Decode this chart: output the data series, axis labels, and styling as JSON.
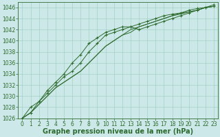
{
  "x": [
    0,
    1,
    2,
    3,
    4,
    5,
    6,
    7,
    8,
    9,
    10,
    11,
    12,
    13,
    14,
    15,
    16,
    17,
    18,
    19,
    20,
    21,
    22,
    23
  ],
  "series_top_marker": [
    1026,
    1028,
    1029,
    1031,
    1032.5,
    1034,
    1036,
    1037.5,
    1039.5,
    1040.5,
    1041.5,
    1042,
    1042.5,
    1042.5,
    1042,
    1042.5,
    1043,
    1043.5,
    1044,
    1044.5,
    1045,
    1045.5,
    1046,
    1046.5
  ],
  "series_mid_marker": [
    1026,
    1027,
    1029,
    1030.5,
    1032,
    1033.5,
    1034.5,
    1036,
    1038,
    1039.5,
    1041,
    1041.5,
    1042,
    1042.5,
    1043,
    1043.5,
    1044,
    1044.5,
    1044.8,
    1045,
    1045.5,
    1045.8,
    1046,
    1046.2
  ],
  "series_band1": [
    1026,
    1027,
    1028.5,
    1030,
    1031.5,
    1032.5,
    1033.5,
    1034.5,
    1036,
    1037.5,
    1039,
    1040,
    1041,
    1041.5,
    1042.5,
    1043,
    1043.5,
    1044,
    1044.5,
    1045,
    1045.2,
    1045.5,
    1046,
    1046.2
  ],
  "series_band2": [
    1026,
    1027,
    1028.5,
    1030,
    1031.5,
    1032.5,
    1033.5,
    1034.5,
    1036,
    1037.5,
    1039,
    1040,
    1041,
    1042,
    1042.5,
    1043,
    1043.5,
    1044,
    1044.5,
    1044.8,
    1045.2,
    1045.5,
    1046,
    1046.2
  ],
  "line_color": "#2d6a2d",
  "bg_color": "#cce8e8",
  "grid_color": "#99ccbb",
  "xlabel": "Graphe pression niveau de la mer (hPa)",
  "ylim": [
    1026,
    1047
  ],
  "xlim": [
    -0.5,
    23.5
  ],
  "yticks": [
    1026,
    1028,
    1030,
    1032,
    1034,
    1036,
    1038,
    1040,
    1042,
    1044,
    1046
  ],
  "xticks": [
    0,
    1,
    2,
    3,
    4,
    5,
    6,
    7,
    8,
    9,
    10,
    11,
    12,
    13,
    14,
    15,
    16,
    17,
    18,
    19,
    20,
    21,
    22,
    23
  ],
  "tick_fontsize": 5.5,
  "xlabel_fontsize": 7,
  "marker_size": 2.5,
  "linewidth": 0.7
}
